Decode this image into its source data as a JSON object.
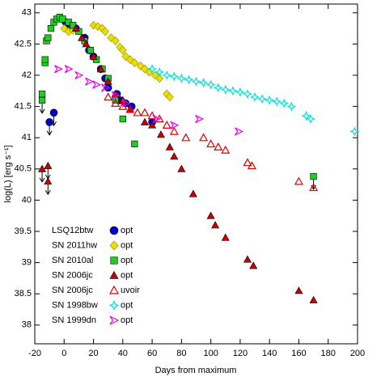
{
  "chart_data": {
    "type": "scatter",
    "xlabel": "Days from maximum",
    "ylabel": "log(L) [erg s⁻¹]",
    "xlim": [
      -20,
      200
    ],
    "xticks": [
      -20,
      0,
      20,
      40,
      60,
      80,
      100,
      120,
      140,
      160,
      180,
      200
    ],
    "ylim": [
      37.7,
      43.14
    ],
    "yticks": [
      38,
      38.5,
      39,
      39.5,
      40,
      40.5,
      41,
      41.5,
      42,
      42.5,
      43
    ],
    "series": [
      {
        "name": "LSQ12btw",
        "band": "opt",
        "label_color": "#000000",
        "color": "#0000cc",
        "marker": "circle",
        "filled": true,
        "x": [
          -10,
          -7,
          1,
          4,
          8,
          14,
          17,
          20,
          25,
          28,
          30,
          36,
          38,
          42,
          46,
          60
        ],
        "values": [
          41.25,
          41.4,
          42.85,
          42.8,
          42.75,
          42.6,
          42.4,
          42.3,
          42.1,
          41.95,
          41.8,
          41.7,
          41.6,
          41.55,
          41.5,
          41.25
        ],
        "upper_limit": [
          true,
          true,
          false,
          false,
          false,
          false,
          false,
          false,
          false,
          false,
          false,
          false,
          false,
          false,
          false,
          false
        ]
      },
      {
        "name": "SN 2011hw",
        "band": "opt",
        "label_color": "#000000",
        "color": "#e8e000",
        "marker": "diamond",
        "filled": true,
        "x": [
          0,
          3,
          6,
          20,
          23,
          26,
          28,
          32,
          35,
          38,
          40,
          42,
          45,
          48,
          52,
          55,
          58,
          62,
          65,
          70,
          72
        ],
        "values": [
          42.75,
          42.7,
          42.72,
          42.8,
          42.78,
          42.75,
          42.7,
          42.6,
          42.55,
          42.45,
          42.4,
          42.3,
          42.25,
          42.2,
          42.15,
          42.1,
          42.05,
          42.0,
          41.95,
          41.7,
          41.65
        ]
      },
      {
        "name": "SN 2010al",
        "band": "opt",
        "label_color": "#000000",
        "color": "#22cc22",
        "marker": "square",
        "filled": true,
        "x": [
          -15,
          -15,
          -13,
          -13,
          -12,
          -11,
          -9,
          -7,
          -5,
          -3,
          -1,
          3,
          6,
          10,
          14,
          18,
          22,
          26,
          30,
          35,
          40,
          48,
          170
        ],
        "values": [
          41.6,
          41.7,
          42.2,
          42.25,
          42.55,
          42.6,
          42.75,
          42.85,
          42.9,
          42.93,
          42.9,
          42.85,
          42.8,
          42.7,
          42.55,
          42.4,
          42.25,
          42.1,
          41.95,
          41.6,
          41.3,
          40.9,
          40.38
        ],
        "upper_limit": [
          true,
          false,
          false,
          false,
          false,
          false,
          false,
          false,
          false,
          false,
          false,
          false,
          false,
          false,
          false,
          false,
          false,
          false,
          false,
          false,
          false,
          false,
          true
        ]
      },
      {
        "name": "SN 2006jc",
        "band": "opt",
        "label_color": "#dd0000",
        "color": "#cc0000",
        "marker": "triangle",
        "filled": true,
        "x": [
          -15,
          -11,
          -11,
          8,
          12,
          15,
          20,
          25,
          30,
          35,
          40,
          45,
          55,
          60,
          66,
          72,
          75,
          80,
          88,
          100,
          103,
          110,
          125,
          129,
          160,
          170
        ],
        "values": [
          40.5,
          40.55,
          40.3,
          42.75,
          42.6,
          42.5,
          42.3,
          42.1,
          41.9,
          41.7,
          41.6,
          41.45,
          41.25,
          41.2,
          41.05,
          40.85,
          40.7,
          40.5,
          40.1,
          39.75,
          39.6,
          39.4,
          39.05,
          38.95,
          38.55,
          38.4
        ],
        "upper_limit": [
          true,
          true,
          true,
          false,
          false,
          false,
          false,
          false,
          false,
          false,
          false,
          false,
          false,
          false,
          false,
          false,
          false,
          false,
          false,
          false,
          false,
          false,
          false,
          false,
          false,
          false
        ]
      },
      {
        "name": "SN 2006jc",
        "band": "uvoir",
        "label_color": "#dd0000",
        "color": "#dd0000",
        "marker": "triangle",
        "filled": false,
        "x": [
          30,
          35,
          40,
          45,
          50,
          55,
          60,
          65,
          70,
          75,
          83,
          95,
          100,
          105,
          110,
          125,
          128,
          160,
          170
        ],
        "values": [
          41.65,
          41.55,
          41.5,
          41.45,
          41.4,
          41.4,
          41.35,
          41.3,
          41.2,
          41.1,
          41.0,
          41.0,
          40.9,
          40.85,
          40.8,
          40.6,
          40.55,
          40.3,
          40.2
        ]
      },
      {
        "name": "SN 1998bw",
        "band": "opt",
        "label_color": "#00dddd",
        "color": "#00e0e0",
        "marker": "star",
        "filled": false,
        "x": [
          60,
          65,
          70,
          75,
          80,
          85,
          90,
          95,
          100,
          105,
          110,
          115,
          120,
          125,
          130,
          135,
          140,
          145,
          150,
          155,
          165,
          168,
          198
        ],
        "values": [
          42.1,
          42.05,
          42.0,
          41.98,
          41.95,
          41.93,
          41.9,
          41.88,
          41.85,
          41.8,
          41.77,
          41.75,
          41.73,
          41.7,
          41.65,
          41.62,
          41.6,
          41.58,
          41.55,
          41.5,
          41.35,
          41.3,
          41.1
        ]
      },
      {
        "name": "SN 1999dn",
        "band": "opt",
        "label_color": "#ee00ee",
        "color": "#ee00ee",
        "marker": "tri-right",
        "filled": false,
        "x": [
          -4,
          3,
          10,
          17,
          22,
          28,
          35,
          42,
          63,
          75,
          92,
          119
        ],
        "values": [
          42.1,
          42.1,
          42.0,
          41.9,
          41.85,
          41.8,
          41.68,
          41.55,
          41.3,
          41.2,
          41.3,
          41.1
        ]
      }
    ]
  }
}
